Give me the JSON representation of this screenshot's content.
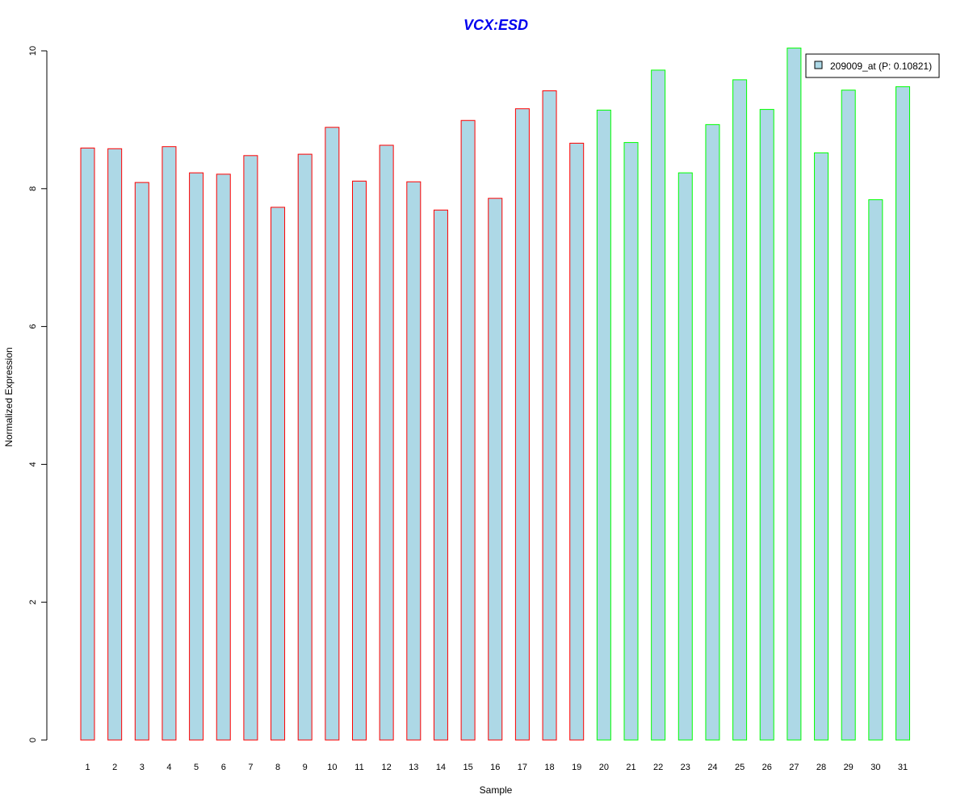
{
  "chart_data": {
    "type": "bar",
    "title": "VCX:ESD",
    "title_color": "#0000ee",
    "xlabel": "Sample",
    "ylabel": "Normalized Expression",
    "ylim": [
      0,
      10
    ],
    "yticks": [
      0,
      2,
      4,
      6,
      8,
      10
    ],
    "categories": [
      "1",
      "2",
      "3",
      "4",
      "5",
      "6",
      "7",
      "8",
      "9",
      "10",
      "11",
      "12",
      "13",
      "14",
      "15",
      "16",
      "17",
      "18",
      "19",
      "20",
      "21",
      "22",
      "23",
      "24",
      "25",
      "26",
      "27",
      "28",
      "29",
      "30",
      "31"
    ],
    "series": [
      {
        "name": "209009_at (P: 0.10821)",
        "fill": "#add8e6",
        "values": [
          8.59,
          8.58,
          8.09,
          8.61,
          8.23,
          8.21,
          8.48,
          7.73,
          8.5,
          8.89,
          8.11,
          8.63,
          8.1,
          7.69,
          8.99,
          7.86,
          9.16,
          9.42,
          8.66,
          9.14,
          8.67,
          9.72,
          8.23,
          8.93,
          9.58,
          9.15,
          10.04,
          8.52,
          9.43,
          7.84,
          9.48
        ]
      }
    ],
    "border_colors": [
      "#ff0000",
      "#ff0000",
      "#ff0000",
      "#ff0000",
      "#ff0000",
      "#ff0000",
      "#ff0000",
      "#ff0000",
      "#ff0000",
      "#ff0000",
      "#ff0000",
      "#ff0000",
      "#ff0000",
      "#ff0000",
      "#ff0000",
      "#ff0000",
      "#ff0000",
      "#ff0000",
      "#ff0000",
      "#00ff00",
      "#00ff00",
      "#00ff00",
      "#00ff00",
      "#00ff00",
      "#00ff00",
      "#00ff00",
      "#00ff00",
      "#00ff00",
      "#00ff00",
      "#00ff00",
      "#00ff00"
    ],
    "grid": false,
    "legend_position": "top-right"
  }
}
